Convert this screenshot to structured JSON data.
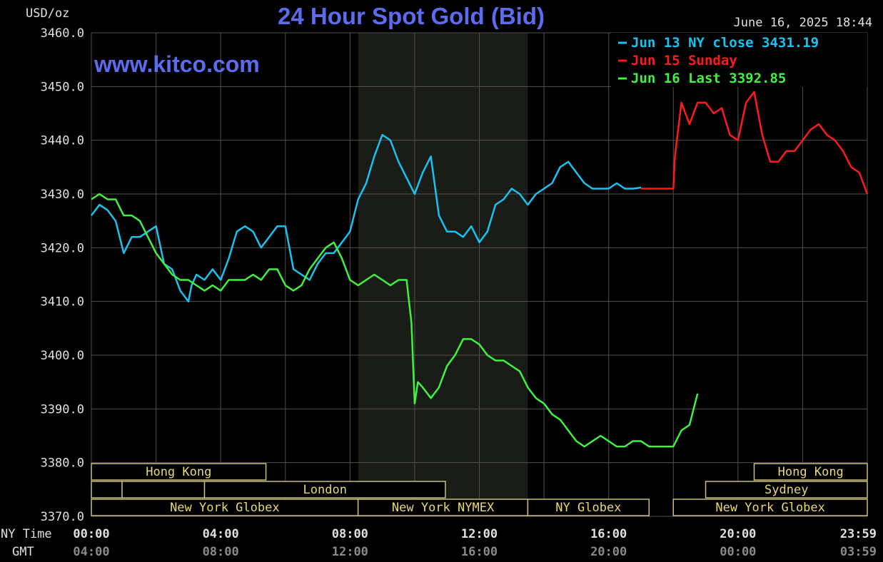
{
  "header": {
    "unit": "USD/oz",
    "title": "24 Hour Spot Gold (Bid)",
    "timestamp": "June 16, 2025 18:44",
    "watermark": "www.kitco.com"
  },
  "colors": {
    "background": "#000000",
    "grid": "#505050",
    "title": "#5b6cf0",
    "watermark": "#5b6cf0",
    "series_jun13": "#19c3ef",
    "series_jun15": "#ff1a1a",
    "series_jun16": "#3ef23e",
    "session_fill": "#1a1c18",
    "session_border": "#c9bd7e",
    "session_text": "#e8d870",
    "gmt_text": "#8a8a8a",
    "label_text": "#e0e0e0"
  },
  "axis": {
    "ny_time_label": "NY Time",
    "gmt_label": "GMT"
  },
  "chart_data": {
    "type": "line",
    "title": "24 Hour Spot Gold (Bid)",
    "ylabel": "USD/oz",
    "ylim": [
      3370.0,
      3460.0
    ],
    "xlim": [
      0,
      24
    ],
    "yticks": [
      "3460.0",
      "3450.0",
      "3440.0",
      "3430.0",
      "3420.0",
      "3410.0",
      "3400.0",
      "3390.0",
      "3380.0",
      "3370.0"
    ],
    "ytick_values": [
      3460,
      3450,
      3440,
      3430,
      3420,
      3410,
      3400,
      3390,
      3380,
      3370
    ],
    "xticks_ny": [
      "00:00",
      "04:00",
      "08:00",
      "12:00",
      "16:00",
      "20:00",
      "23:59"
    ],
    "xticks_gmt": [
      "04:00",
      "08:00",
      "12:00",
      "16:00",
      "20:00",
      "00:00",
      "03:59"
    ],
    "xtick_hours": [
      0,
      4,
      8,
      12,
      16,
      20,
      24
    ],
    "grid": true,
    "legend_position": "top-right",
    "shaded_hours": [
      8.25,
      13.5
    ],
    "series": [
      {
        "name": "Jun 13 NY close 3431.19",
        "color": "#19c3ef",
        "x": [
          0,
          0.25,
          0.5,
          0.75,
          1.0,
          1.25,
          1.5,
          1.75,
          2.0,
          2.25,
          2.5,
          2.75,
          3.0,
          3.1,
          3.25,
          3.5,
          3.75,
          4.0,
          4.25,
          4.5,
          4.75,
          5.0,
          5.25,
          5.5,
          5.75,
          6.0,
          6.25,
          6.5,
          6.75,
          7.0,
          7.25,
          7.5,
          7.75,
          8.0,
          8.25,
          8.5,
          8.75,
          9.0,
          9.25,
          9.5,
          9.75,
          10.0,
          10.25,
          10.5,
          10.75,
          11.0,
          11.25,
          11.5,
          11.75,
          12.0,
          12.25,
          12.5,
          12.75,
          13.0,
          13.25,
          13.5,
          13.75,
          14.0,
          14.25,
          14.5,
          14.75,
          15.0,
          15.25,
          15.5,
          15.75,
          16.0,
          16.25,
          16.5,
          16.75,
          17.0
        ],
        "y": [
          3426,
          3428,
          3427,
          3425,
          3419,
          3422,
          3422,
          3423,
          3424,
          3417,
          3416,
          3412,
          3410,
          3413,
          3415,
          3414,
          3416,
          3414,
          3418,
          3423,
          3424,
          3423,
          3420,
          3422,
          3424,
          3424,
          3416,
          3415,
          3414,
          3417,
          3419,
          3419,
          3421,
          3423,
          3429,
          3432,
          3437,
          3441,
          3440,
          3436,
          3433,
          3430,
          3434,
          3437,
          3426,
          3423,
          3423,
          3422,
          3424,
          3421,
          3423,
          3428,
          3429,
          3431,
          3430,
          3428,
          3430,
          3431,
          3432,
          3435,
          3436,
          3434,
          3432,
          3431,
          3431,
          3431,
          3432,
          3431,
          3431,
          3431.19
        ]
      },
      {
        "name": "Jun 15 Sunday",
        "color": "#ff1a1a",
        "x": [
          17.0,
          17.5,
          18.0,
          18.05,
          18.25,
          18.5,
          18.75,
          19.0,
          19.25,
          19.5,
          19.75,
          20.0,
          20.25,
          20.5,
          20.75,
          21.0,
          21.25,
          21.5,
          21.75,
          22.0,
          22.25,
          22.5,
          22.75,
          23.0,
          23.25,
          23.5,
          23.75,
          24.0
        ],
        "y": [
          3431,
          3431,
          3431,
          3437,
          3447,
          3443,
          3447,
          3447,
          3445,
          3446,
          3441,
          3440,
          3447,
          3449,
          3441,
          3436,
          3436,
          3438,
          3438,
          3440,
          3442,
          3443,
          3441,
          3440,
          3438,
          3435,
          3434,
          3430
        ]
      },
      {
        "name": "Jun 16 Last 3392.85",
        "color": "#3ef23e",
        "x": [
          0,
          0.25,
          0.5,
          0.75,
          1.0,
          1.25,
          1.5,
          1.75,
          2.0,
          2.25,
          2.5,
          2.75,
          3.0,
          3.25,
          3.5,
          3.75,
          4.0,
          4.25,
          4.5,
          4.75,
          5.0,
          5.25,
          5.5,
          5.75,
          6.0,
          6.25,
          6.5,
          6.75,
          7.0,
          7.25,
          7.5,
          7.75,
          8.0,
          8.25,
          8.5,
          8.75,
          9.0,
          9.25,
          9.5,
          9.75,
          9.9,
          10.0,
          10.1,
          10.25,
          10.5,
          10.75,
          11.0,
          11.25,
          11.5,
          11.75,
          12.0,
          12.25,
          12.5,
          12.75,
          13.0,
          13.25,
          13.5,
          13.75,
          14.0,
          14.25,
          14.5,
          14.75,
          15.0,
          15.25,
          15.5,
          15.75,
          16.0,
          16.25,
          16.5,
          16.75,
          17.0,
          17.25,
          17.5,
          17.75,
          18.0,
          18.25,
          18.5,
          18.75
        ],
        "y": [
          3429,
          3430,
          3429,
          3429,
          3426,
          3426,
          3425,
          3422,
          3419,
          3417,
          3415,
          3414,
          3414,
          3413,
          3412,
          3413,
          3412,
          3414,
          3414,
          3414,
          3415,
          3414,
          3416,
          3416,
          3413,
          3412,
          3413,
          3416,
          3418,
          3420,
          3421,
          3418,
          3414,
          3413,
          3414,
          3415,
          3414,
          3413,
          3414,
          3414,
          3406,
          3391,
          3395,
          3394,
          3392,
          3394,
          3398,
          3400,
          3403,
          3403,
          3402,
          3400,
          3399,
          3399,
          3398,
          3397,
          3394,
          3392,
          3391,
          3389,
          3388,
          3386,
          3384,
          3383,
          3384,
          3385,
          3384,
          3383,
          3383,
          3384,
          3384,
          3383,
          3383,
          3383,
          3383,
          3386,
          3387,
          3392.85
        ]
      }
    ]
  },
  "sessions": [
    {
      "name": "Hong Kong",
      "row": 0,
      "start": 0.0,
      "end": 5.4
    },
    {
      "name": "",
      "row": 1,
      "start": 0.0,
      "end": 0.95
    },
    {
      "name": "",
      "row": 1,
      "start": 0.95,
      "end": 3.5
    },
    {
      "name": "London",
      "row": 1,
      "start": 3.5,
      "end": 10.95
    },
    {
      "name": "New York Globex",
      "row": 2,
      "start": 0.0,
      "end": 8.25
    },
    {
      "name": "New York NYMEX",
      "row": 2,
      "start": 8.25,
      "end": 13.5
    },
    {
      "name": "NY Globex",
      "row": 2,
      "start": 13.5,
      "end": 17.25
    },
    {
      "name": "Hong Kong",
      "row": 0,
      "start": 20.5,
      "end": 24.0
    },
    {
      "name": "Sydney",
      "row": 1,
      "start": 19.0,
      "end": 24.0
    },
    {
      "name": "New York Globex",
      "row": 2,
      "start": 18.0,
      "end": 24.0
    }
  ]
}
